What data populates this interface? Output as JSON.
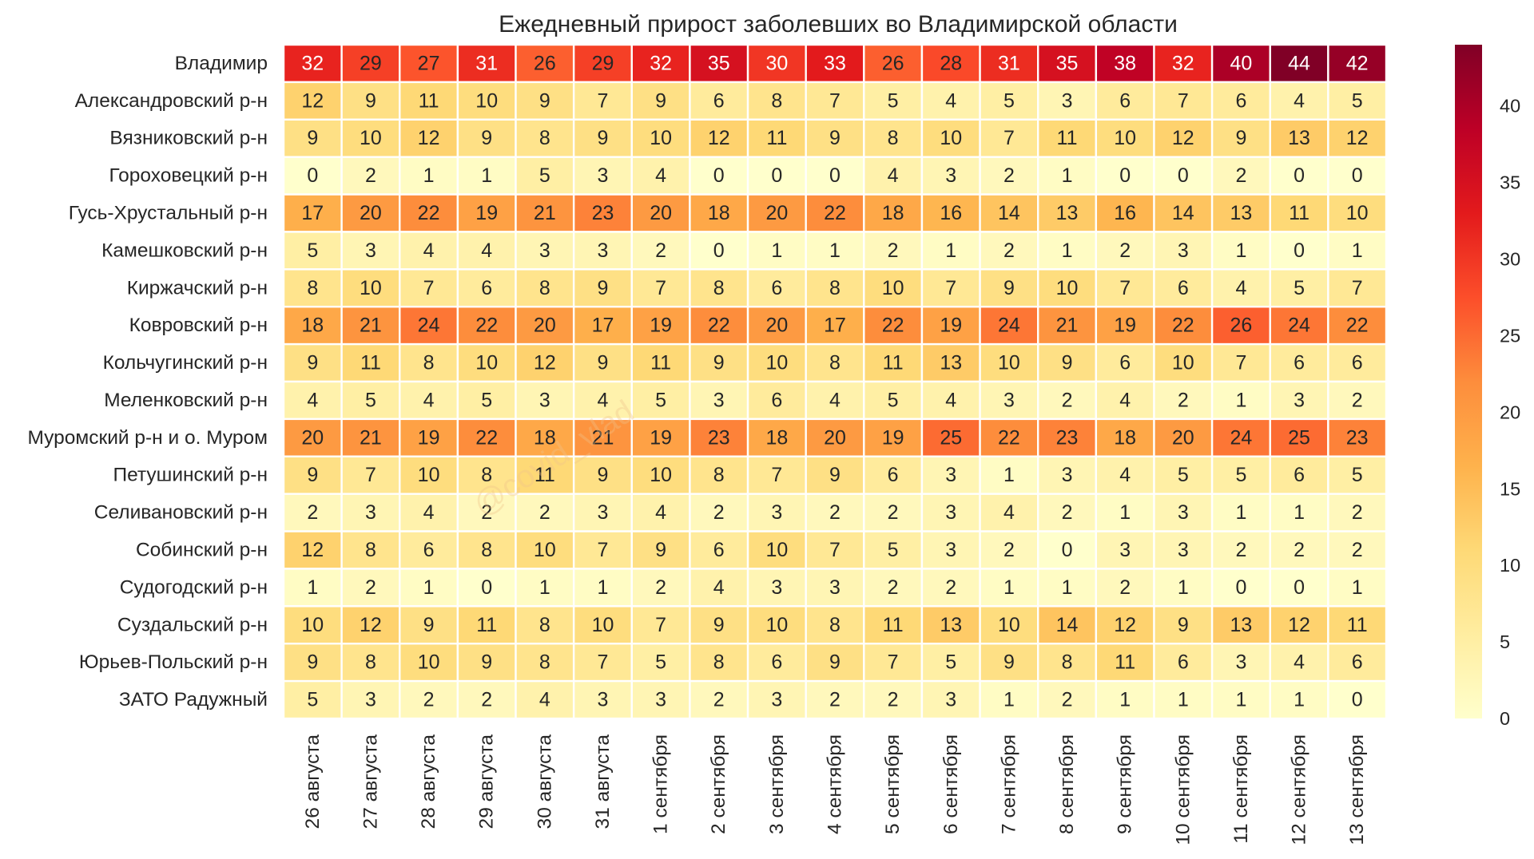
{
  "chart_data": {
    "type": "heatmap",
    "title": "Ежедневный прирост заболевших во Владимирской области",
    "watermark": "@covid_vlad",
    "colormap": "YlOrRd",
    "colorbar": {
      "range": [
        0,
        44
      ],
      "ticks": [
        0,
        5,
        10,
        15,
        20,
        25,
        30,
        35,
        40
      ]
    },
    "columns": [
      "26 августа",
      "27 августа",
      "28 августа",
      "29 августа",
      "30 августа",
      "31 августа",
      "1 сентября",
      "2 сентября",
      "3 сентября",
      "4 сентября",
      "5 сентября",
      "6 сентября",
      "7 сентября",
      "8 сентября",
      "9 сентября",
      "10 сентября",
      "11 сентября",
      "12 сентября",
      "13 сентября"
    ],
    "rows": [
      {
        "label": "Владимир",
        "values": [
          32,
          29,
          27,
          31,
          26,
          29,
          32,
          35,
          30,
          33,
          26,
          28,
          31,
          35,
          38,
          32,
          40,
          44,
          42
        ]
      },
      {
        "label": "Александровский р-н",
        "values": [
          12,
          9,
          11,
          10,
          9,
          7,
          9,
          6,
          8,
          7,
          5,
          4,
          5,
          3,
          6,
          7,
          6,
          4,
          5
        ]
      },
      {
        "label": "Вязниковский р-н",
        "values": [
          9,
          10,
          12,
          9,
          8,
          9,
          10,
          12,
          11,
          9,
          8,
          10,
          7,
          11,
          10,
          12,
          9,
          13,
          12
        ]
      },
      {
        "label": "Гороховецкий р-н",
        "values": [
          0,
          2,
          1,
          1,
          5,
          3,
          4,
          0,
          0,
          0,
          4,
          3,
          2,
          1,
          0,
          0,
          2,
          0,
          0
        ]
      },
      {
        "label": "Гусь-Хрустальный р-н",
        "values": [
          17,
          20,
          22,
          19,
          21,
          23,
          20,
          18,
          20,
          22,
          18,
          16,
          14,
          13,
          16,
          14,
          13,
          11,
          10
        ]
      },
      {
        "label": "Камешковский р-н",
        "values": [
          5,
          3,
          4,
          4,
          3,
          3,
          2,
          0,
          1,
          1,
          2,
          1,
          2,
          1,
          2,
          3,
          1,
          0,
          1
        ]
      },
      {
        "label": "Киржачский р-н",
        "values": [
          8,
          10,
          7,
          6,
          8,
          9,
          7,
          8,
          6,
          8,
          10,
          7,
          9,
          10,
          7,
          6,
          4,
          5,
          7
        ]
      },
      {
        "label": "Ковровский р-н",
        "values": [
          18,
          21,
          24,
          22,
          20,
          17,
          19,
          22,
          20,
          17,
          22,
          19,
          24,
          21,
          19,
          22,
          26,
          24,
          22
        ]
      },
      {
        "label": "Кольчугинский р-н",
        "values": [
          9,
          11,
          8,
          10,
          12,
          9,
          11,
          9,
          10,
          8,
          11,
          13,
          10,
          9,
          6,
          10,
          7,
          6,
          6
        ]
      },
      {
        "label": "Меленковский р-н",
        "values": [
          4,
          5,
          4,
          5,
          3,
          4,
          5,
          3,
          6,
          4,
          5,
          4,
          3,
          2,
          4,
          2,
          1,
          3,
          2
        ]
      },
      {
        "label": "Муромский р-н и о. Муром",
        "values": [
          20,
          21,
          19,
          22,
          18,
          21,
          19,
          23,
          18,
          20,
          19,
          25,
          22,
          23,
          18,
          20,
          24,
          25,
          23
        ]
      },
      {
        "label": "Петушинский р-н",
        "values": [
          9,
          7,
          10,
          8,
          11,
          9,
          10,
          8,
          7,
          9,
          6,
          3,
          1,
          3,
          4,
          5,
          5,
          6,
          5
        ]
      },
      {
        "label": "Селивановский р-н",
        "values": [
          2,
          3,
          4,
          2,
          2,
          3,
          4,
          2,
          3,
          2,
          2,
          3,
          4,
          2,
          1,
          3,
          1,
          1,
          2
        ]
      },
      {
        "label": "Собинский р-н",
        "values": [
          12,
          8,
          6,
          8,
          10,
          7,
          9,
          6,
          10,
          7,
          5,
          3,
          2,
          0,
          3,
          3,
          2,
          2,
          2
        ]
      },
      {
        "label": "Судогодский р-н",
        "values": [
          1,
          2,
          1,
          0,
          1,
          1,
          2,
          4,
          3,
          3,
          2,
          2,
          1,
          1,
          2,
          1,
          0,
          0,
          1
        ]
      },
      {
        "label": "Суздальский р-н",
        "values": [
          10,
          12,
          9,
          11,
          8,
          10,
          7,
          9,
          10,
          8,
          11,
          13,
          10,
          14,
          12,
          9,
          13,
          12,
          11
        ]
      },
      {
        "label": "Юрьев-Польский р-н",
        "values": [
          9,
          8,
          10,
          9,
          8,
          7,
          5,
          8,
          6,
          9,
          7,
          5,
          9,
          8,
          11,
          6,
          3,
          4,
          6
        ]
      },
      {
        "label": "ЗАТО Радужный",
        "values": [
          5,
          3,
          2,
          2,
          4,
          3,
          3,
          2,
          3,
          2,
          2,
          3,
          1,
          2,
          1,
          1,
          1,
          1,
          0
        ]
      }
    ]
  }
}
